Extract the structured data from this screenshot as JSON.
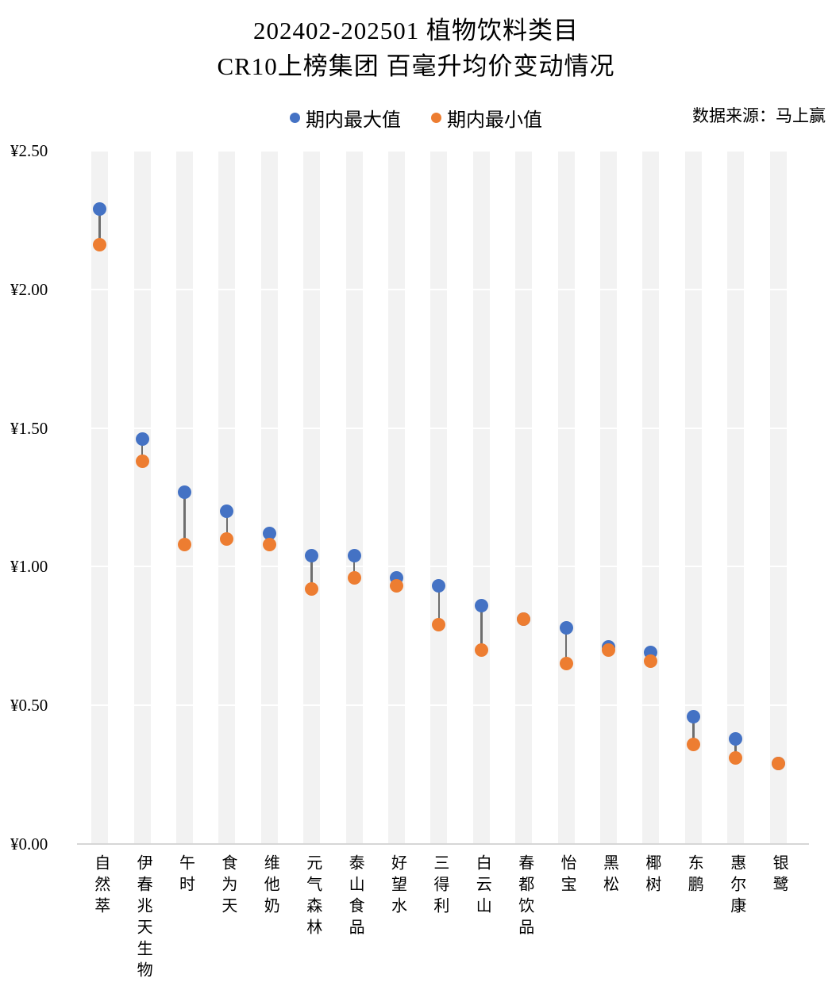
{
  "title": {
    "line1": "202402-202501 植物饮料类目",
    "line2": "CR10上榜集团 百毫升均价变动情况"
  },
  "legend": {
    "max_label": "期内最大值",
    "min_label": "期内最小值"
  },
  "source": "数据来源：马上赢",
  "colors": {
    "max_dot": "#4472C4",
    "min_dot": "#ED7D31",
    "band": "#F2F2F2",
    "gridline": "#FFFFFF",
    "axis": "#D6D6D6",
    "connector": "#6E6E6E",
    "text": "#000000"
  },
  "chart_data": {
    "type": "scatter",
    "subtype": "dumbbell-range",
    "title": "202402-202501 植物饮料类目 CR10上榜集团 百毫升均价变动情况",
    "xlabel": "",
    "ylabel": "",
    "ylim": [
      0,
      2.5
    ],
    "grid": true,
    "legend_position": "top",
    "categories": [
      "自然萃",
      "伊春兆天生物",
      "午时",
      "食为天",
      "维他奶",
      "元气森林",
      "泰山食品",
      "好望水",
      "三得利",
      "白云山",
      "春都饮品",
      "怡宝",
      "黑松",
      "椰树",
      "东鹏",
      "惠尔康",
      "银鹭"
    ],
    "series": [
      {
        "name": "期内最大值",
        "color": "#4472C4",
        "values": [
          2.29,
          1.46,
          1.27,
          1.2,
          1.12,
          1.04,
          1.04,
          0.96,
          0.93,
          0.86,
          0.81,
          0.78,
          0.71,
          0.69,
          0.46,
          0.38,
          0.29
        ]
      },
      {
        "name": "期内最小值",
        "color": "#ED7D31",
        "values": [
          2.16,
          1.38,
          1.08,
          1.1,
          1.08,
          0.92,
          0.96,
          0.93,
          0.79,
          0.7,
          0.81,
          0.65,
          0.7,
          0.66,
          0.36,
          0.31,
          0.29
        ]
      }
    ],
    "yticks": [
      {
        "value": 0.0,
        "label": "¥0.00"
      },
      {
        "value": 0.5,
        "label": "¥0.50"
      },
      {
        "value": 1.0,
        "label": "¥1.00"
      },
      {
        "value": 1.5,
        "label": "¥1.50"
      },
      {
        "value": 2.0,
        "label": "¥2.00"
      },
      {
        "value": 2.5,
        "label": "¥2.50"
      }
    ]
  }
}
